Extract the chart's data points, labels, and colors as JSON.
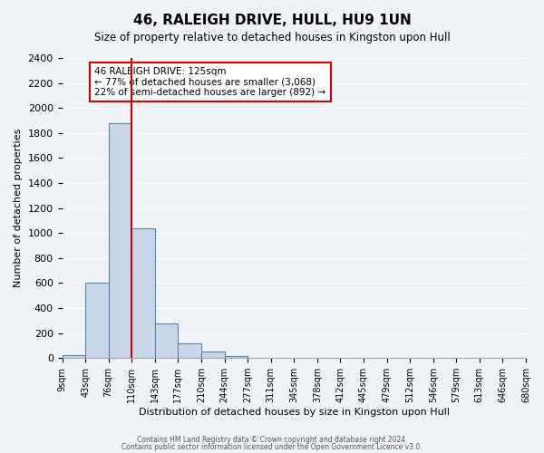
{
  "title": "46, RALEIGH DRIVE, HULL, HU9 1UN",
  "subtitle": "Size of property relative to detached houses in Kingston upon Hull",
  "xlabel": "Distribution of detached houses by size in Kingston upon Hull",
  "ylabel": "Number of detached properties",
  "bin_labels": [
    "9sqm",
    "43sqm",
    "76sqm",
    "110sqm",
    "143sqm",
    "177sqm",
    "210sqm",
    "244sqm",
    "277sqm",
    "311sqm",
    "345sqm",
    "378sqm",
    "412sqm",
    "445sqm",
    "479sqm",
    "512sqm",
    "546sqm",
    "579sqm",
    "613sqm",
    "646sqm",
    "680sqm"
  ],
  "bar_heights": [
    20,
    600,
    1880,
    1035,
    280,
    115,
    50,
    15,
    0,
    0,
    0,
    0,
    0,
    0,
    0,
    0,
    0,
    0,
    0,
    0
  ],
  "bar_color": "#c8d8e8",
  "bar_edge_color": "#5588aa",
  "property_line_x": 3,
  "property_line_color": "#cc0000",
  "annotation_title": "46 RALEIGH DRIVE: 125sqm",
  "annotation_line1": "← 77% of detached houses are smaller (3,068)",
  "annotation_line2": "22% of semi-detached houses are larger (892) →",
  "annotation_box_color": "#ffffff",
  "annotation_box_edge": "#cc0000",
  "ylim": [
    0,
    2400
  ],
  "yticks": [
    0,
    200,
    400,
    600,
    800,
    1000,
    1200,
    1400,
    1600,
    1800,
    2000,
    2200,
    2400
  ],
  "footer_line1": "Contains HM Land Registry data © Crown copyright and database right 2024.",
  "footer_line2": "Contains public sector information licensed under the Open Government Licence v3.0.",
  "background_color": "#f0f4f8",
  "plot_background_color": "#f0f4f8"
}
